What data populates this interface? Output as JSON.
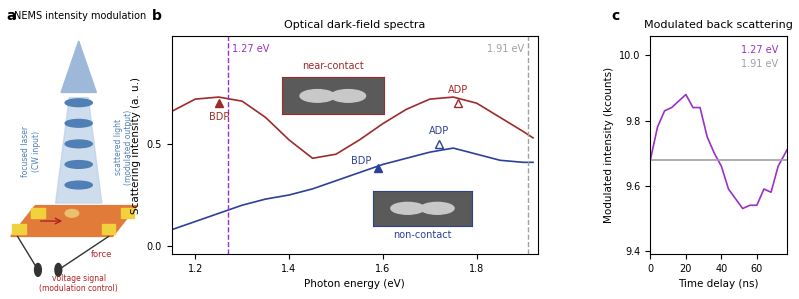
{
  "diagram": {
    "panel": "a",
    "title": "NEMS intensity modulation",
    "labels": {
      "output": "scattered light\n(modulated output)",
      "input": "focused laser\n(CW input)",
      "force": "force",
      "control": "voltage signal\n(modulation control)"
    }
  },
  "chart_data": [
    {
      "type": "line",
      "panel": "b",
      "title": "Optical dark-field spectra",
      "x_label": "Photon energy (eV)",
      "y_label": "Scattering intensity (a. u.)",
      "x": [
        1.15,
        1.2,
        1.25,
        1.3,
        1.35,
        1.4,
        1.45,
        1.5,
        1.55,
        1.6,
        1.65,
        1.7,
        1.75,
        1.8,
        1.85,
        1.9,
        1.92
      ],
      "series": [
        {
          "name": "near-contact",
          "color": "#9e2a2b",
          "values": [
            0.66,
            0.72,
            0.73,
            0.71,
            0.63,
            0.52,
            0.43,
            0.45,
            0.52,
            0.6,
            0.67,
            0.72,
            0.73,
            0.7,
            0.63,
            0.56,
            0.53
          ]
        },
        {
          "name": "non-contact",
          "color": "#2b4099",
          "values": [
            0.08,
            0.12,
            0.16,
            0.2,
            0.23,
            0.25,
            0.28,
            0.32,
            0.36,
            0.4,
            0.43,
            0.46,
            0.48,
            0.45,
            0.42,
            0.41,
            0.41
          ]
        }
      ],
      "vlines": [
        {
          "x": 1.27,
          "label": "1.27 eV",
          "color": "#9b30c8"
        },
        {
          "x": 1.91,
          "label": "1.91 eV",
          "color": "#a0a0a0"
        }
      ],
      "annotations": [
        {
          "text": "BDP",
          "x": 1.25,
          "y": 0.7,
          "color": "#9e2a2b",
          "marker": "filled",
          "position": "below"
        },
        {
          "text": "ADP",
          "x": 1.76,
          "y": 0.7,
          "color": "#9e2a2b",
          "marker": "open",
          "position": "above"
        },
        {
          "text": "BDP",
          "x": 1.59,
          "y": 0.38,
          "color": "#2b4099",
          "marker": "filled",
          "position": "left"
        },
        {
          "text": "ADP",
          "x": 1.72,
          "y": 0.5,
          "color": "#2b4099",
          "marker": "open",
          "position": "above"
        }
      ],
      "xlim": [
        1.15,
        1.93
      ],
      "xticks": [
        1.2,
        1.4,
        1.6,
        1.8
      ],
      "ylim": [
        -0.04,
        1.03
      ],
      "yticks": [
        {
          "value": 0,
          "label": "0.0"
        },
        {
          "value": 0.5,
          "label": "0.5"
        }
      ]
    },
    {
      "type": "line",
      "panel": "c",
      "title": "Modulated back scattering",
      "x_label": "Time delay (ns)",
      "y_label": "Modulated intensity (kcounts)",
      "x": [
        0,
        4,
        8,
        12,
        16,
        20,
        24,
        28,
        32,
        36,
        40,
        44,
        48,
        52,
        56,
        60,
        64,
        68,
        72,
        77
      ],
      "series": [
        {
          "name": "1.27 eV",
          "color": "#9b30c8",
          "values": [
            9.68,
            9.78,
            9.83,
            9.84,
            9.86,
            9.88,
            9.84,
            9.84,
            9.75,
            9.7,
            9.66,
            9.59,
            9.56,
            9.53,
            9.54,
            9.54,
            9.59,
            9.58,
            9.66,
            9.71
          ]
        },
        {
          "name": "1.91 eV",
          "color": "#a0a0a0",
          "values": [
            9.68,
            9.68,
            9.68,
            9.68,
            9.68,
            9.68,
            9.68,
            9.68,
            9.68,
            9.68,
            9.68,
            9.68,
            9.68,
            9.68,
            9.68,
            9.68,
            9.68,
            9.68,
            9.68,
            9.68
          ]
        }
      ],
      "legend": "upper right",
      "xlim": [
        0,
        77
      ],
      "xticks": [
        0,
        20,
        40,
        60
      ],
      "ylim": [
        9.39,
        10.06
      ],
      "yticks": [
        9.4,
        9.6,
        9.8,
        {
          "value": 10,
          "label": "10.0"
        }
      ]
    }
  ]
}
